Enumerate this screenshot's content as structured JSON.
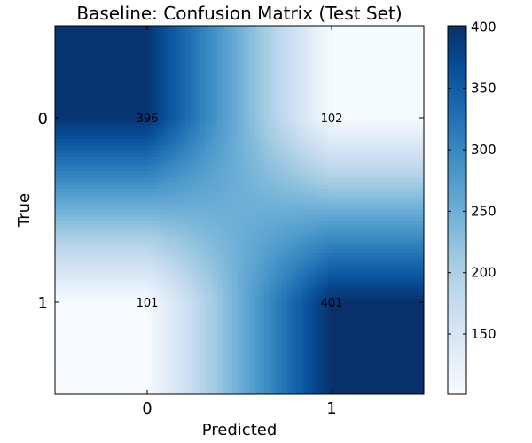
{
  "chart_data": {
    "type": "heatmap",
    "title": "Baseline: Confusion Matrix (Test Set)",
    "xlabel": "Predicted",
    "ylabel": "True",
    "x_categories": [
      "0",
      "1"
    ],
    "y_categories": [
      "0",
      "1"
    ],
    "values": [
      [
        396,
        102
      ],
      [
        101,
        401
      ]
    ],
    "colormap": "Blues",
    "interpolation": "smooth",
    "colorbar": {
      "range": [
        101,
        401
      ],
      "ticks": [
        150,
        200,
        250,
        300,
        350,
        400
      ],
      "tick_labels": [
        "150",
        "200",
        "250",
        "300",
        "350",
        "400"
      ]
    },
    "grid": false
  },
  "colors": {
    "low": "#f7fbff",
    "high": "#08306b"
  }
}
